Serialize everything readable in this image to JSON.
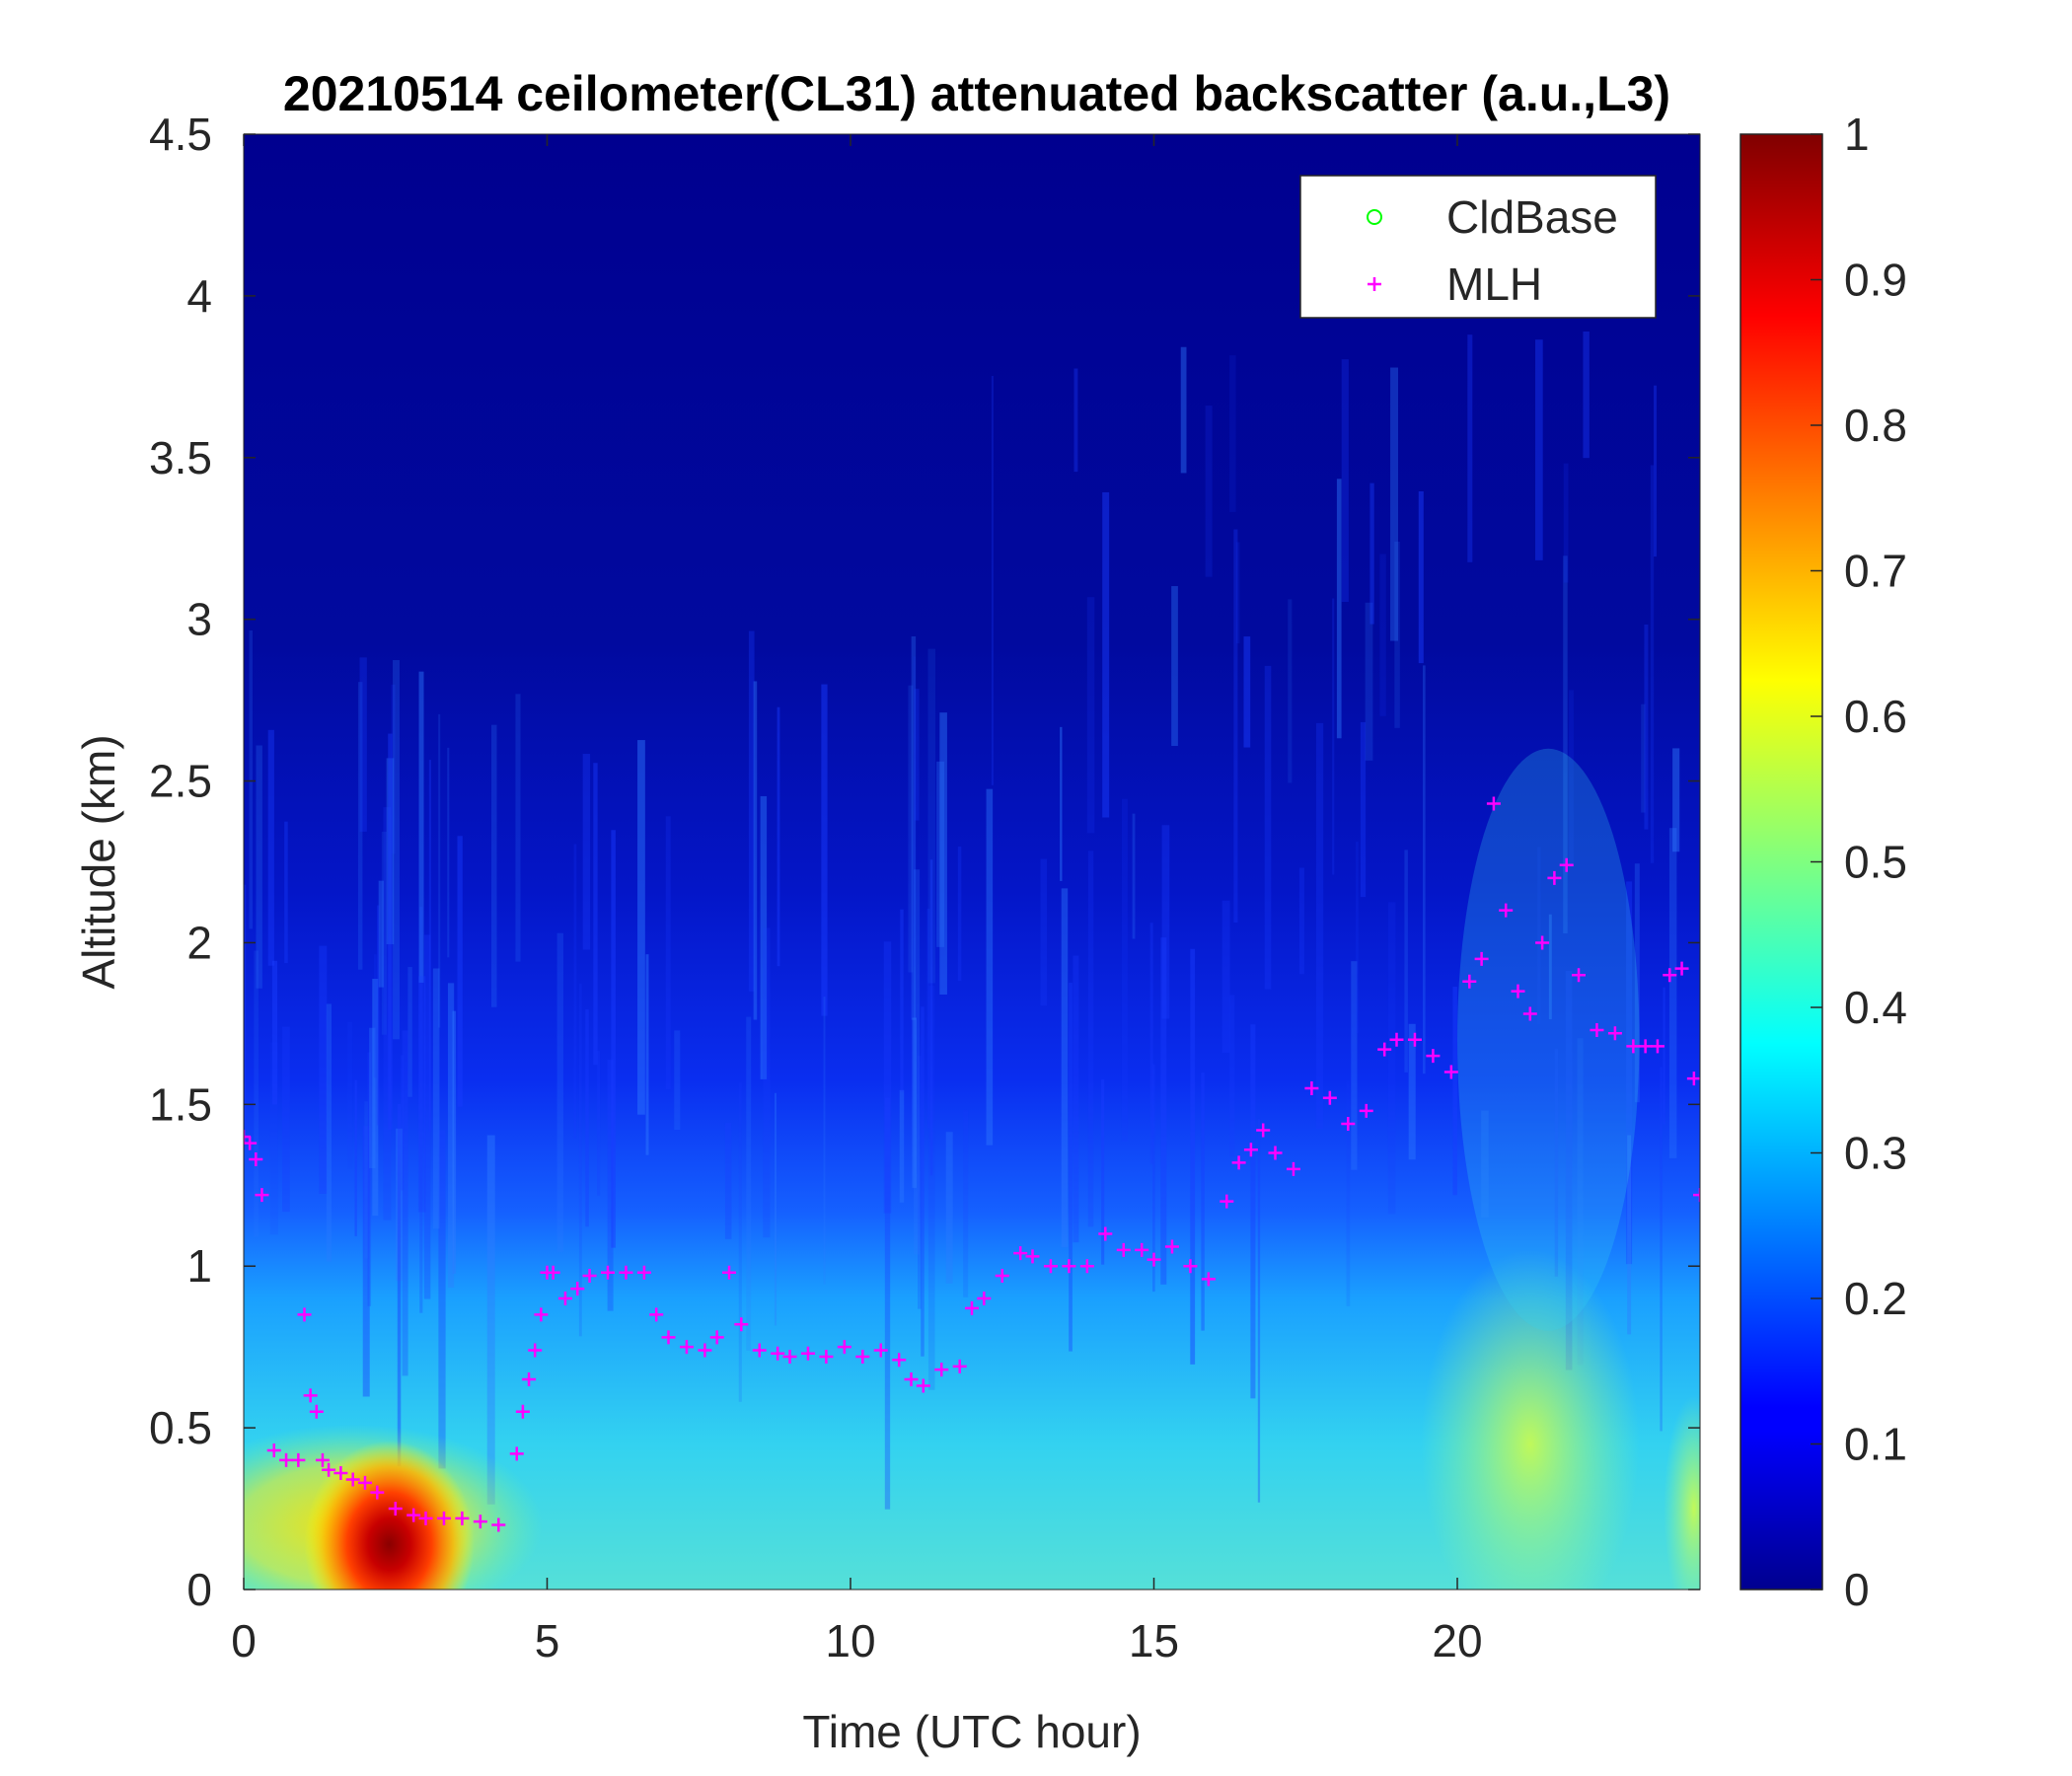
{
  "chart_data": {
    "type": "heatmap",
    "title": "20210514 ceilometer(CL31) attenuated backscatter (a.u.,L3)",
    "xlabel": "Time (UTC hour)",
    "ylabel": "Altitude (km)",
    "xlim": [
      0,
      24
    ],
    "ylim": [
      0,
      4.5
    ],
    "x_ticks": [
      0,
      5,
      10,
      15,
      20
    ],
    "y_ticks": [
      0,
      0.5,
      1,
      1.5,
      2,
      2.5,
      3,
      3.5,
      4,
      4.5
    ],
    "colorbar": {
      "range": [
        0,
        1
      ],
      "ticks": [
        0,
        0.1,
        0.2,
        0.3,
        0.4,
        0.5,
        0.6,
        0.7,
        0.8,
        0.9,
        1
      ],
      "colormap": "jet"
    },
    "legend": {
      "placement": "top-right",
      "entries": [
        {
          "label": "CldBase",
          "marker": "circle",
          "color": "#00ff00"
        },
        {
          "label": "MLH",
          "marker": "plus",
          "color": "#ff00ff"
        }
      ]
    },
    "series": [
      {
        "name": "MLH",
        "color": "#ff00ff",
        "x": [
          0.0,
          0.1,
          0.2,
          0.3,
          0.5,
          0.7,
          0.9,
          1.0,
          1.1,
          1.2,
          1.3,
          1.4,
          1.6,
          1.8,
          2.0,
          2.2,
          2.5,
          2.8,
          3.0,
          3.3,
          3.6,
          3.9,
          4.2,
          4.5,
          4.6,
          4.7,
          4.8,
          4.9,
          5.0,
          5.1,
          5.3,
          5.5,
          5.7,
          6.0,
          6.3,
          6.6,
          6.8,
          7.0,
          7.3,
          7.6,
          7.8,
          8.0,
          8.2,
          8.5,
          8.8,
          9.0,
          9.3,
          9.6,
          9.9,
          10.2,
          10.5,
          10.8,
          11.0,
          11.2,
          11.5,
          11.8,
          12.0,
          12.2,
          12.5,
          12.8,
          13.0,
          13.3,
          13.6,
          13.9,
          14.2,
          14.5,
          14.8,
          15.0,
          15.3,
          15.6,
          15.9,
          16.2,
          16.4,
          16.6,
          16.8,
          17.0,
          17.3,
          17.6,
          17.9,
          18.2,
          18.5,
          18.8,
          19.0,
          19.3,
          19.6,
          19.9,
          20.2,
          20.4,
          20.6,
          20.8,
          21.0,
          21.2,
          21.4,
          21.6,
          21.8,
          22.0,
          22.3,
          22.6,
          22.9,
          23.1,
          23.3,
          23.5,
          23.7,
          23.9,
          24.0
        ],
        "y": [
          1.4,
          1.38,
          1.33,
          1.22,
          0.43,
          0.4,
          0.4,
          0.85,
          0.6,
          0.55,
          0.4,
          0.37,
          0.36,
          0.34,
          0.33,
          0.3,
          0.25,
          0.23,
          0.22,
          0.22,
          0.22,
          0.21,
          0.2,
          0.42,
          0.55,
          0.65,
          0.74,
          0.85,
          0.98,
          0.98,
          0.9,
          0.93,
          0.97,
          0.98,
          0.98,
          0.98,
          0.85,
          0.78,
          0.75,
          0.74,
          0.78,
          0.98,
          0.82,
          0.74,
          0.73,
          0.72,
          0.73,
          0.72,
          0.75,
          0.72,
          0.74,
          0.71,
          0.65,
          0.63,
          0.68,
          0.69,
          0.87,
          0.9,
          0.97,
          1.04,
          1.03,
          1.0,
          1.0,
          1.0,
          1.1,
          1.05,
          1.05,
          1.02,
          1.06,
          1.0,
          0.96,
          1.2,
          1.32,
          1.36,
          1.42,
          1.35,
          1.3,
          1.55,
          1.52,
          1.44,
          1.48,
          1.67,
          1.7,
          1.7,
          1.65,
          1.6,
          1.88,
          1.95,
          2.43,
          2.1,
          1.85,
          1.78,
          2.0,
          2.2,
          2.24,
          1.9,
          1.73,
          1.72,
          1.68,
          1.68,
          1.68,
          1.9,
          1.92,
          1.58,
          1.22
        ]
      },
      {
        "name": "CldBase",
        "color": "#00ff00",
        "x": [],
        "y": []
      }
    ]
  }
}
